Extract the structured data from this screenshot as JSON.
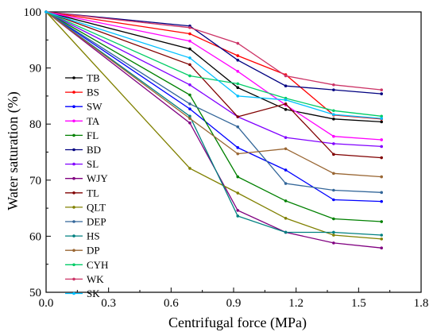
{
  "chart_data": {
    "type": "line",
    "xlabel": "Centrifugal force (MPa)",
    "ylabel": "Water saturation (%)",
    "xlim": [
      0.0,
      1.8
    ],
    "ylim": [
      50,
      100
    ],
    "xticks": [
      "0.0",
      "0.3",
      "0.6",
      "0.9",
      "1.2",
      "1.5",
      "1.8"
    ],
    "yticks": [
      "50",
      "60",
      "70",
      "80",
      "90",
      "100"
    ],
    "grid": false,
    "legend_position": "left",
    "x": [
      0.0,
      0.69,
      0.92,
      1.15,
      1.38,
      1.61
    ],
    "series": [
      {
        "name": "TB",
        "color": "#000000",
        "values": [
          100,
          93.4,
          86.5,
          82.6,
          80.9,
          80.4
        ]
      },
      {
        "name": "BS",
        "color": "#ff0000",
        "values": [
          100,
          96.1,
          92.2,
          88.8,
          81.6,
          80.9
        ]
      },
      {
        "name": "SW",
        "color": "#0000ff",
        "values": [
          100,
          82.7,
          75.8,
          71.8,
          66.5,
          66.2
        ]
      },
      {
        "name": "TA",
        "color": "#ff00ff",
        "values": [
          100,
          94.8,
          89.4,
          83.4,
          77.8,
          77.2
        ]
      },
      {
        "name": "FL",
        "color": "#008000",
        "values": [
          100,
          85.2,
          70.6,
          66.3,
          63.1,
          62.6
        ]
      },
      {
        "name": "BD",
        "color": "#000080",
        "values": [
          100,
          97.5,
          91.4,
          86.8,
          86.1,
          85.4
        ]
      },
      {
        "name": "SL",
        "color": "#8000ff",
        "values": [
          100,
          87.0,
          81.3,
          77.6,
          76.5,
          76.0
        ]
      },
      {
        "name": "WJY",
        "color": "#800080",
        "values": [
          100,
          80.2,
          64.6,
          60.7,
          58.8,
          57.9
        ]
      },
      {
        "name": "TL",
        "color": "#800000",
        "values": [
          100,
          90.6,
          81.3,
          83.6,
          74.6,
          74.0
        ]
      },
      {
        "name": "QLT",
        "color": "#808000",
        "values": [
          100,
          72.1,
          67.7,
          63.2,
          60.2,
          59.5
        ]
      },
      {
        "name": "DEP",
        "color": "#336699",
        "values": [
          100,
          83.6,
          79.5,
          69.4,
          68.2,
          67.8
        ]
      },
      {
        "name": "HS",
        "color": "#008080",
        "values": [
          100,
          81.4,
          63.6,
          60.7,
          60.7,
          60.2
        ]
      },
      {
        "name": "DP",
        "color": "#996633",
        "values": [
          100,
          81.0,
          74.7,
          75.6,
          71.2,
          70.6
        ]
      },
      {
        "name": "CYH",
        "color": "#00cc66",
        "values": [
          100,
          88.6,
          87.2,
          84.6,
          82.4,
          81.4
        ]
      },
      {
        "name": "WK",
        "color": "#cc3366",
        "values": [
          100,
          97.2,
          94.4,
          88.6,
          87.0,
          86.1
        ]
      },
      {
        "name": "SK",
        "color": "#00bfff",
        "values": [
          100,
          91.8,
          85.0,
          84.3,
          81.7,
          81.0
        ]
      }
    ]
  }
}
